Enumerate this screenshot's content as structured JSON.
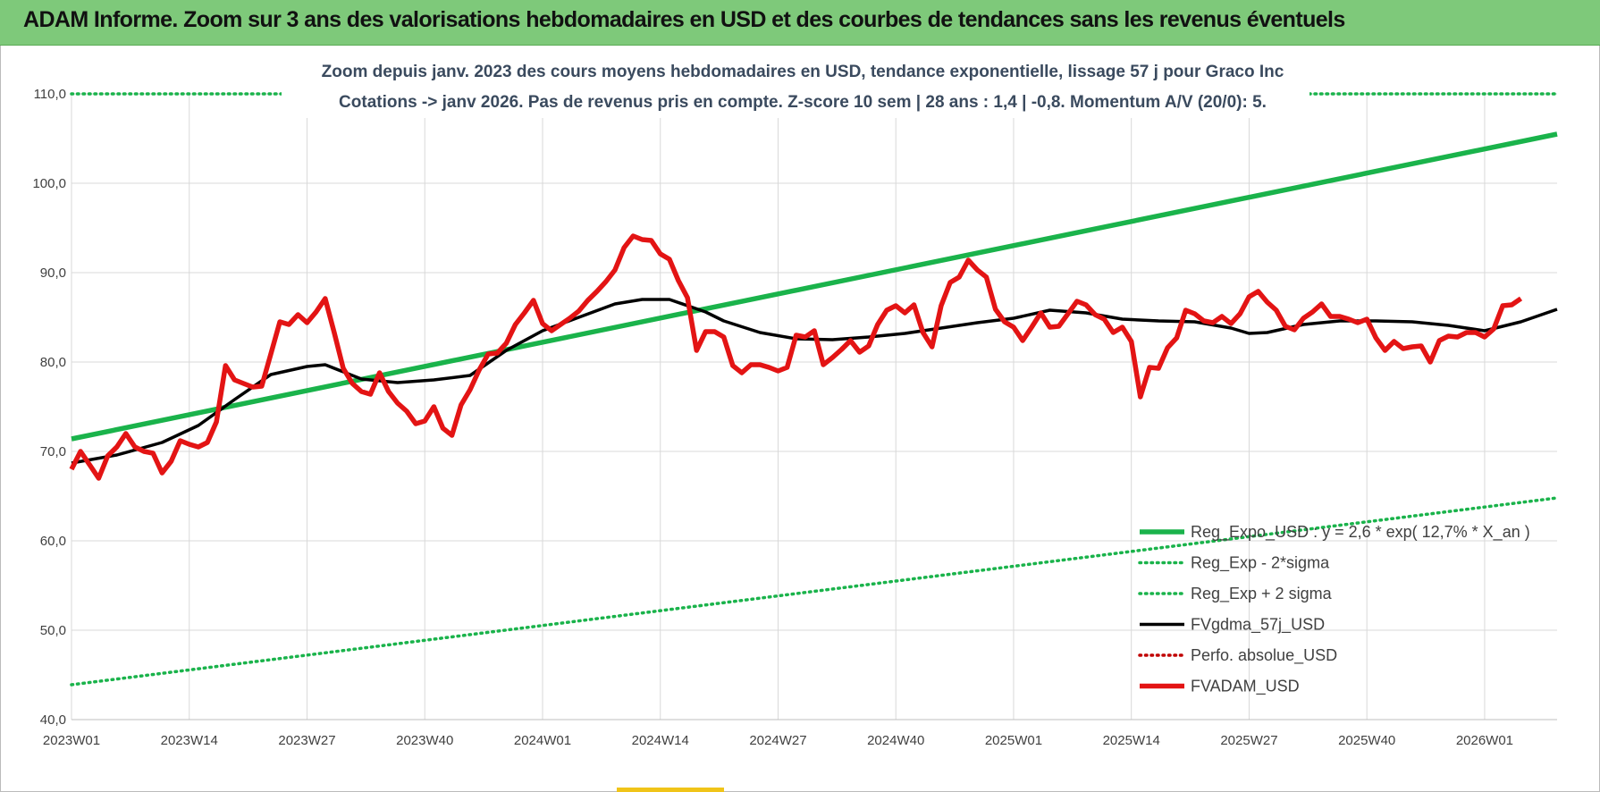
{
  "banner": {
    "title": "ADAM Informe. Zoom sur 3 ans des valorisations hebdomadaires en USD et des courbes de tendances sans les revenus éventuels"
  },
  "chart_data": {
    "type": "line",
    "title_line1": "Zoom depuis janv. 2023 des cours moyens hebdomadaires en USD, tendance exponentielle, lissage 57 j pour Graco Inc",
    "title_line2": "Cotations -> janv 2026. Pas de revenus pris en compte. Z-score 10 sem | 28 ans : 1,4 | -0,8. Momentum A/V (20/0): 5.",
    "ylim": [
      40,
      110
    ],
    "y_ticks": [
      "40,0",
      "50,0",
      "60,0",
      "70,0",
      "80,0",
      "90,0",
      "100,0",
      "110,0"
    ],
    "x_ticks": [
      "2023W01",
      "2023W14",
      "2023W27",
      "2023W40",
      "2024W01",
      "2024W14",
      "2024W27",
      "2024W40",
      "2025W01",
      "2025W14",
      "2025W27",
      "2025W40",
      "2026W01"
    ],
    "x_range_weeks": [
      0,
      164
    ],
    "legend_position": "bottom-right",
    "series": [
      {
        "name": "Reg_Expo_USD : y = 2,6 * exp( 12,7% *  X_an )",
        "style": "solid-thick",
        "color": "#1ab34b",
        "points": [
          [
            0,
            71.4
          ],
          [
            164,
            105.5
          ]
        ]
      },
      {
        "name": "Reg_Exp - 2*sigma",
        "style": "dotted",
        "color": "#1ab34b",
        "points": [
          [
            0,
            43.9
          ],
          [
            164,
            64.8
          ]
        ]
      },
      {
        "name": "Reg_Exp + 2 sigma",
        "style": "dotted",
        "color": "#1ab34b",
        "points": [
          [
            0,
            110
          ],
          [
            164,
            110
          ]
        ]
      },
      {
        "name": "FVgdma_57j_USD",
        "style": "solid",
        "color": "#000000",
        "points": [
          [
            0,
            68.7
          ],
          [
            5,
            69.6
          ],
          [
            10,
            71
          ],
          [
            14,
            72.9
          ],
          [
            18,
            75.8
          ],
          [
            22,
            78.6
          ],
          [
            26,
            79.5
          ],
          [
            28,
            79.7
          ],
          [
            32,
            78.1
          ],
          [
            36,
            77.7
          ],
          [
            40,
            78
          ],
          [
            44,
            78.5
          ],
          [
            48,
            81.3
          ],
          [
            52,
            83.5
          ],
          [
            56,
            85
          ],
          [
            60,
            86.5
          ],
          [
            63,
            87
          ],
          [
            66,
            87
          ],
          [
            70,
            85.6
          ],
          [
            72,
            84.6
          ],
          [
            76,
            83.3
          ],
          [
            80,
            82.6
          ],
          [
            84,
            82.5
          ],
          [
            88,
            82.8
          ],
          [
            92,
            83.2
          ],
          [
            96,
            83.8
          ],
          [
            100,
            84.4
          ],
          [
            104,
            84.9
          ],
          [
            108,
            85.8
          ],
          [
            112,
            85.5
          ],
          [
            116,
            84.8
          ],
          [
            120,
            84.6
          ],
          [
            124,
            84.5
          ],
          [
            128,
            83.8
          ],
          [
            130,
            83.2
          ],
          [
            132,
            83.3
          ],
          [
            136,
            84.2
          ],
          [
            140,
            84.6
          ],
          [
            144,
            84.6
          ],
          [
            148,
            84.5
          ],
          [
            152,
            84.1
          ],
          [
            156,
            83.5
          ],
          [
            160,
            84.5
          ],
          [
            164,
            85.9
          ]
        ]
      },
      {
        "name": "Perfo. absolue_USD",
        "style": "dotted",
        "color": "#c00000",
        "points": []
      },
      {
        "name": "FVADAM_USD",
        "style": "solid-thick",
        "color": "#e31414",
        "points": [
          [
            0,
            68
          ],
          [
            1,
            70
          ],
          [
            2,
            68.5
          ],
          [
            3,
            67
          ],
          [
            4,
            69.5
          ],
          [
            5,
            70.5
          ],
          [
            6,
            72
          ],
          [
            7,
            70.5
          ],
          [
            8,
            70
          ],
          [
            9,
            69.8
          ],
          [
            10,
            67.6
          ],
          [
            11,
            68.9
          ],
          [
            12,
            71.2
          ],
          [
            13,
            70.8
          ],
          [
            14,
            70.5
          ],
          [
            15,
            71
          ],
          [
            16,
            73.3
          ],
          [
            17,
            79.6
          ],
          [
            18,
            78
          ],
          [
            19,
            77.6
          ],
          [
            20,
            77.2
          ],
          [
            21,
            77.3
          ],
          [
            22,
            80.9
          ],
          [
            23,
            84.5
          ],
          [
            24,
            84.2
          ],
          [
            25,
            85.3
          ],
          [
            26,
            84.4
          ],
          [
            27,
            85.6
          ],
          [
            28,
            87.1
          ],
          [
            29,
            83.3
          ],
          [
            30,
            79.3
          ],
          [
            31,
            77.6
          ],
          [
            32,
            76.7
          ],
          [
            33,
            76.4
          ],
          [
            34,
            78.8
          ],
          [
            35,
            76.7
          ],
          [
            36,
            75.4
          ],
          [
            37,
            74.5
          ],
          [
            38,
            73.1
          ],
          [
            39,
            73.4
          ],
          [
            40,
            75
          ],
          [
            41,
            72.6
          ],
          [
            42,
            71.8
          ],
          [
            43,
            75.2
          ],
          [
            44,
            76.9
          ],
          [
            45,
            79.1
          ],
          [
            46,
            80.9
          ],
          [
            47,
            81
          ],
          [
            48,
            82.1
          ],
          [
            49,
            84.2
          ],
          [
            50,
            85.5
          ],
          [
            51,
            86.9
          ],
          [
            52,
            84.3
          ],
          [
            53,
            83.5
          ],
          [
            54,
            84.2
          ],
          [
            55,
            84.9
          ],
          [
            56,
            85.7
          ],
          [
            57,
            86.9
          ],
          [
            58,
            87.9
          ],
          [
            59,
            89
          ],
          [
            60,
            90.3
          ],
          [
            61,
            92.8
          ],
          [
            62,
            94.1
          ],
          [
            63,
            93.7
          ],
          [
            64,
            93.6
          ],
          [
            65,
            92.1
          ],
          [
            66,
            91.5
          ],
          [
            67,
            89.1
          ],
          [
            68,
            87.2
          ],
          [
            69,
            81.3
          ],
          [
            70,
            83.4
          ],
          [
            71,
            83.4
          ],
          [
            72,
            82.8
          ],
          [
            73,
            79.6
          ],
          [
            74,
            78.8
          ],
          [
            75,
            79.7
          ],
          [
            76,
            79.7
          ],
          [
            77,
            79.4
          ],
          [
            78,
            79
          ],
          [
            79,
            79.4
          ],
          [
            80,
            83
          ],
          [
            81,
            82.8
          ],
          [
            82,
            83.5
          ],
          [
            83,
            79.7
          ],
          [
            84,
            80.5
          ],
          [
            85,
            81.4
          ],
          [
            86,
            82.4
          ],
          [
            87,
            81.1
          ],
          [
            88,
            81.8
          ],
          [
            89,
            84.2
          ],
          [
            90,
            85.8
          ],
          [
            91,
            86.3
          ],
          [
            92,
            85.5
          ],
          [
            93,
            86.4
          ],
          [
            94,
            83.3
          ],
          [
            95,
            81.7
          ],
          [
            96,
            86.3
          ],
          [
            97,
            88.9
          ],
          [
            98,
            89.5
          ],
          [
            99,
            91.4
          ],
          [
            100,
            90.3
          ],
          [
            101,
            89.5
          ],
          [
            102,
            85.9
          ],
          [
            103,
            84.5
          ],
          [
            104,
            83.9
          ],
          [
            105,
            82.4
          ],
          [
            106,
            83.9
          ],
          [
            107,
            85.5
          ],
          [
            108,
            83.9
          ],
          [
            109,
            84
          ],
          [
            110,
            85.4
          ],
          [
            111,
            86.8
          ],
          [
            112,
            86.4
          ],
          [
            113,
            85.3
          ],
          [
            114,
            84.8
          ],
          [
            115,
            83.3
          ],
          [
            116,
            83.9
          ],
          [
            117,
            82.3
          ],
          [
            118,
            76.1
          ],
          [
            119,
            79.4
          ],
          [
            120,
            79.3
          ],
          [
            121,
            81.6
          ],
          [
            122,
            82.7
          ],
          [
            123,
            85.8
          ],
          [
            124,
            85.4
          ],
          [
            125,
            84.6
          ],
          [
            126,
            84.4
          ],
          [
            127,
            85.1
          ],
          [
            128,
            84.3
          ],
          [
            129,
            85.4
          ],
          [
            130,
            87.3
          ],
          [
            131,
            87.9
          ],
          [
            132,
            86.7
          ],
          [
            133,
            85.8
          ],
          [
            134,
            84
          ],
          [
            135,
            83.6
          ],
          [
            136,
            84.9
          ],
          [
            137,
            85.6
          ],
          [
            138,
            86.5
          ],
          [
            139,
            85.1
          ],
          [
            140,
            85.1
          ],
          [
            141,
            84.8
          ],
          [
            142,
            84.4
          ],
          [
            143,
            84.8
          ],
          [
            144,
            82.7
          ],
          [
            145,
            81.3
          ],
          [
            146,
            82.3
          ],
          [
            147,
            81.5
          ],
          [
            148,
            81.7
          ],
          [
            149,
            81.8
          ],
          [
            150,
            80
          ],
          [
            151,
            82.4
          ],
          [
            152,
            82.9
          ],
          [
            153,
            82.8
          ],
          [
            154,
            83.3
          ],
          [
            155,
            83.3
          ],
          [
            156,
            82.8
          ],
          [
            157,
            83.7
          ],
          [
            158,
            86.3
          ],
          [
            159,
            86.4
          ],
          [
            160,
            87.1
          ]
        ]
      }
    ]
  }
}
